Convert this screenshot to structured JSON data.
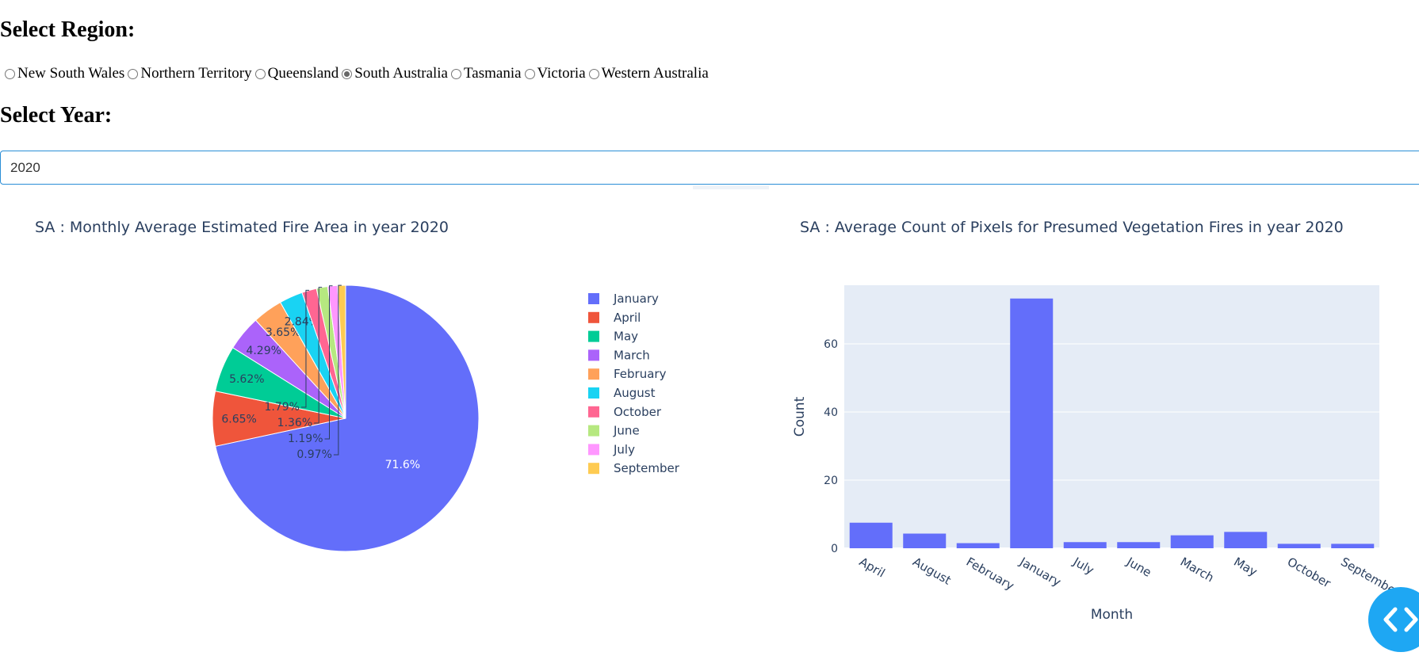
{
  "region": {
    "heading": "Select Region:",
    "options": [
      {
        "label": "New South Wales",
        "checked": false
      },
      {
        "label": "Northern Territory",
        "checked": false
      },
      {
        "label": "Queensland",
        "checked": false
      },
      {
        "label": "South Australia",
        "checked": true
      },
      {
        "label": "Tasmania",
        "checked": false
      },
      {
        "label": "Victoria",
        "checked": false
      },
      {
        "label": "Western Australia",
        "checked": false
      }
    ]
  },
  "year": {
    "heading": "Select Year:",
    "value": "2020"
  },
  "chart_data": [
    {
      "type": "pie",
      "title": "SA : Monthly Average Estimated Fire Area in year 2020",
      "slices": [
        {
          "label": "January",
          "percent": 71.6,
          "text": "71.6%",
          "color": "#636efa"
        },
        {
          "label": "April",
          "percent": 6.65,
          "text": "6.65%",
          "color": "#EF553B"
        },
        {
          "label": "May",
          "percent": 5.62,
          "text": "5.62%",
          "color": "#00cc96"
        },
        {
          "label": "March",
          "percent": 4.29,
          "text": "4.29%",
          "color": "#ab63fa"
        },
        {
          "label": "February",
          "percent": 3.65,
          "text": "3.65%",
          "color": "#FFA15A"
        },
        {
          "label": "August",
          "percent": 2.84,
          "text": "2.84%",
          "color": "#19d3f3"
        },
        {
          "label": "October",
          "percent": 1.79,
          "text": "1.79%",
          "color": "#FF6692"
        },
        {
          "label": "June",
          "percent": 1.36,
          "text": "1.36%",
          "color": "#B6E880"
        },
        {
          "label": "July",
          "percent": 1.19,
          "text": "1.19%",
          "color": "#FF97FF"
        },
        {
          "label": "September",
          "percent": 0.97,
          "text": "0.97%",
          "color": "#FECB52"
        }
      ],
      "legend_placement": "right"
    },
    {
      "type": "bar",
      "title": "SA : Average Count of Pixels for Presumed Vegetation Fires in year 2020",
      "xlabel": "Month",
      "ylabel": "Count",
      "categories": [
        "April",
        "August",
        "February",
        "January",
        "July",
        "June",
        "March",
        "May",
        "October",
        "September"
      ],
      "values": [
        7.5,
        4.3,
        1.5,
        73.3,
        1.8,
        1.8,
        3.8,
        4.8,
        1.3,
        1.3
      ],
      "yticks": [
        0,
        20,
        40,
        60
      ],
      "ylim": [
        0,
        77.2
      ],
      "color": "#636efa",
      "grid": true
    }
  ]
}
